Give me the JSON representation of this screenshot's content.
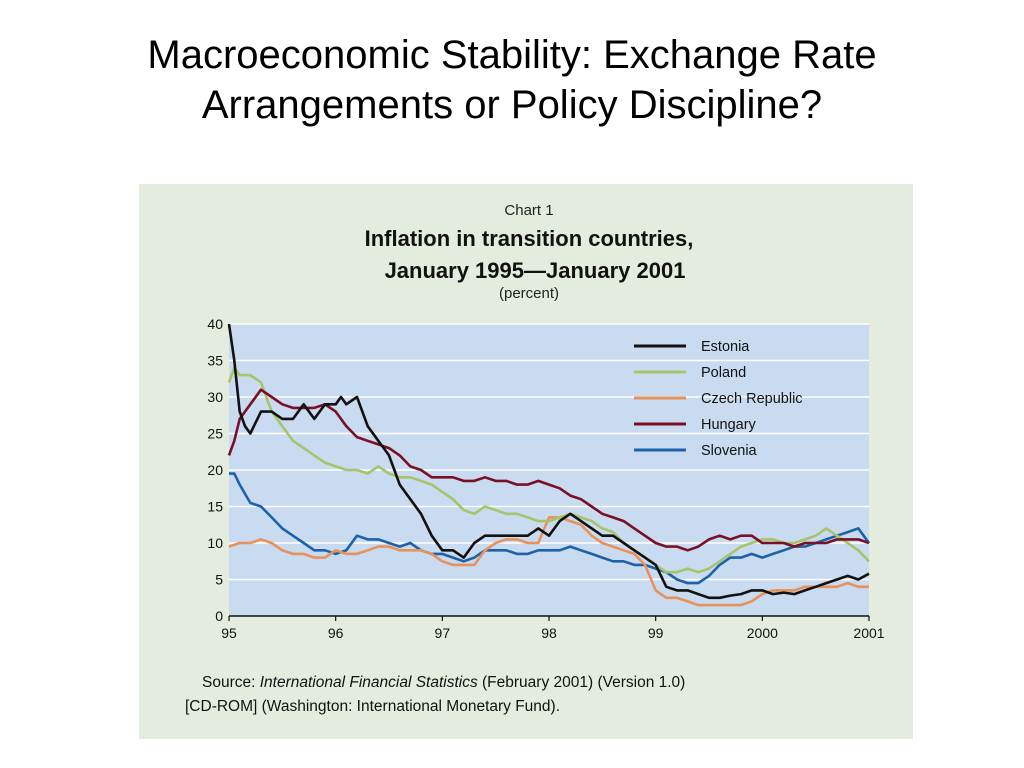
{
  "slide": {
    "title_line1": "Macroeconomic Stability: Exchange Rate",
    "title_line2": "Arrangements or Policy Discipline?"
  },
  "source": {
    "prefix": "Source:",
    "publication": "International Financial Statistics",
    "rest_line1": "(February 2001) (Version 1.0)",
    "line2": "[CD-ROM] (Washington: International Monetary Fund)."
  },
  "colors": {
    "panel_bg": "#e4eddd",
    "plot_bg": "#c9dbf0",
    "grid": "#ffffff",
    "Estonia": "#111111",
    "Poland": "#a7c46a",
    "Czech Republic": "#e8925a",
    "Hungary": "#7a0f25",
    "Slovenia": "#1d62a8"
  },
  "chart_data": {
    "type": "line",
    "chart_label": "Chart 1",
    "title_line1": "Inflation in transition countries,",
    "title_line2": "January 1995—January 2001",
    "subtitle": "(percent)",
    "xlim": [
      1995,
      2001
    ],
    "ylim": [
      0,
      40
    ],
    "xticks": [
      1995,
      1996,
      1997,
      1998,
      1999,
      2000,
      2001
    ],
    "xtick_labels": [
      "95",
      "96",
      "97",
      "98",
      "99",
      "2000",
      "2001"
    ],
    "yticks": [
      0,
      5,
      10,
      15,
      20,
      25,
      30,
      35,
      40
    ],
    "ytick_labels": [
      "0",
      "5",
      "10",
      "15",
      "20",
      "25",
      "30",
      "35",
      "40"
    ],
    "grid": "horizontal",
    "legend_position": "top-right",
    "series": [
      {
        "name": "Estonia",
        "x": [
          1995.0,
          1995.05,
          1995.1,
          1995.15,
          1995.2,
          1995.3,
          1995.4,
          1995.5,
          1995.6,
          1995.7,
          1995.8,
          1995.9,
          1996.0,
          1996.05,
          1996.1,
          1996.2,
          1996.3,
          1996.4,
          1996.5,
          1996.6,
          1996.7,
          1996.8,
          1996.9,
          1997.0,
          1997.1,
          1997.2,
          1997.3,
          1997.4,
          1997.5,
          1997.6,
          1997.7,
          1997.8,
          1997.9,
          1998.0,
          1998.1,
          1998.2,
          1998.3,
          1998.4,
          1998.5,
          1998.6,
          1998.7,
          1998.8,
          1998.9,
          1999.0,
          1999.1,
          1999.2,
          1999.3,
          1999.4,
          1999.5,
          1999.6,
          1999.7,
          1999.8,
          1999.9,
          2000.0,
          2000.1,
          2000.2,
          2000.3,
          2000.4,
          2000.5,
          2000.6,
          2000.7,
          2000.8,
          2000.9,
          2001.0
        ],
        "values": [
          40,
          35,
          28,
          26,
          25,
          28,
          28,
          27,
          27,
          29,
          27,
          29,
          29,
          30,
          29,
          30,
          26,
          24,
          22,
          18,
          16,
          14,
          11,
          9,
          9,
          8,
          10,
          11,
          11,
          11,
          11,
          11,
          12,
          11,
          13,
          14,
          13,
          12,
          11,
          11,
          10,
          9,
          8,
          7,
          4,
          3.5,
          3.5,
          3,
          2.5,
          2.5,
          2.8,
          3,
          3.5,
          3.5,
          3,
          3.2,
          3,
          3.5,
          4,
          4.5,
          5,
          5.5,
          5,
          5.8
        ]
      },
      {
        "name": "Poland",
        "x": [
          1995.0,
          1995.05,
          1995.1,
          1995.2,
          1995.3,
          1995.4,
          1995.5,
          1995.6,
          1995.7,
          1995.8,
          1995.9,
          1996.0,
          1996.1,
          1996.2,
          1996.3,
          1996.4,
          1996.5,
          1996.6,
          1996.7,
          1996.8,
          1996.9,
          1997.0,
          1997.1,
          1997.2,
          1997.3,
          1997.4,
          1997.5,
          1997.6,
          1997.7,
          1997.8,
          1997.9,
          1998.0,
          1998.1,
          1998.2,
          1998.3,
          1998.4,
          1998.5,
          1998.6,
          1998.7,
          1998.8,
          1998.9,
          1999.0,
          1999.1,
          1999.2,
          1999.3,
          1999.4,
          1999.5,
          1999.6,
          1999.7,
          1999.8,
          1999.9,
          2000.0,
          2000.1,
          2000.2,
          2000.3,
          2000.4,
          2000.5,
          2000.6,
          2000.7,
          2000.8,
          2000.9,
          2001.0
        ],
        "values": [
          32,
          34,
          33,
          33,
          32,
          28,
          26,
          24,
          23,
          22,
          21,
          20.5,
          20,
          20,
          19.5,
          20.5,
          19.5,
          19,
          19,
          18.5,
          18,
          17,
          16,
          14.5,
          14,
          15,
          14.5,
          14,
          14,
          13.5,
          13,
          13,
          13.5,
          14,
          13.5,
          13,
          12,
          11.5,
          10,
          9,
          8,
          7,
          6,
          6,
          6.5,
          6,
          6.5,
          7.5,
          8.5,
          9.5,
          10,
          10.5,
          10.5,
          10,
          10,
          10.5,
          11,
          12,
          11,
          10,
          9,
          7.5
        ]
      },
      {
        "name": "Czech Republic",
        "x": [
          1995.0,
          1995.1,
          1995.2,
          1995.3,
          1995.4,
          1995.5,
          1995.6,
          1995.7,
          1995.8,
          1995.9,
          1996.0,
          1996.1,
          1996.2,
          1996.3,
          1996.4,
          1996.5,
          1996.6,
          1996.7,
          1996.8,
          1996.9,
          1997.0,
          1997.1,
          1997.2,
          1997.3,
          1997.4,
          1997.5,
          1997.6,
          1997.7,
          1997.8,
          1997.9,
          1998.0,
          1998.1,
          1998.2,
          1998.3,
          1998.4,
          1998.5,
          1998.6,
          1998.7,
          1998.8,
          1998.9,
          1999.0,
          1999.1,
          1999.2,
          1999.3,
          1999.4,
          1999.5,
          1999.6,
          1999.7,
          1999.8,
          1999.9,
          2000.0,
          2000.1,
          2000.2,
          2000.3,
          2000.4,
          2000.5,
          2000.6,
          2000.7,
          2000.8,
          2000.9,
          2001.0
        ],
        "values": [
          9.5,
          10,
          10,
          10.5,
          10,
          9,
          8.5,
          8.5,
          8,
          8,
          9,
          8.5,
          8.5,
          9,
          9.5,
          9.5,
          9,
          9,
          9,
          8.5,
          7.5,
          7,
          7,
          7,
          9,
          10,
          10.5,
          10.5,
          10,
          10,
          13.5,
          13.5,
          13,
          12.5,
          11,
          10,
          9.5,
          9,
          8.5,
          7,
          3.5,
          2.5,
          2.5,
          2,
          1.5,
          1.5,
          1.5,
          1.5,
          1.5,
          2,
          3,
          3.5,
          3.5,
          3.5,
          4,
          4,
          4,
          4,
          4.5,
          4,
          4
        ]
      },
      {
        "name": "Hungary",
        "x": [
          1995.0,
          1995.05,
          1995.1,
          1995.2,
          1995.3,
          1995.4,
          1995.5,
          1995.6,
          1995.7,
          1995.8,
          1995.9,
          1996.0,
          1996.1,
          1996.2,
          1996.3,
          1996.4,
          1996.5,
          1996.6,
          1996.7,
          1996.8,
          1996.9,
          1997.0,
          1997.1,
          1997.2,
          1997.3,
          1997.4,
          1997.5,
          1997.6,
          1997.7,
          1997.8,
          1997.9,
          1998.0,
          1998.1,
          1998.2,
          1998.3,
          1998.4,
          1998.5,
          1998.6,
          1998.7,
          1998.8,
          1998.9,
          1999.0,
          1999.1,
          1999.2,
          1999.3,
          1999.4,
          1999.5,
          1999.6,
          1999.7,
          1999.8,
          1999.9,
          2000.0,
          2000.1,
          2000.2,
          2000.3,
          2000.4,
          2000.5,
          2000.6,
          2000.7,
          2000.8,
          2000.9,
          2001.0
        ],
        "values": [
          22,
          24,
          27,
          29,
          31,
          30,
          29,
          28.5,
          28.5,
          28.5,
          29,
          28,
          26,
          24.5,
          24,
          23.5,
          23,
          22,
          20.5,
          20,
          19,
          19,
          19,
          18.5,
          18.5,
          19,
          18.5,
          18.5,
          18,
          18,
          18.5,
          18,
          17.5,
          16.5,
          16,
          15,
          14,
          13.5,
          13,
          12,
          11,
          10,
          9.5,
          9.5,
          9,
          9.5,
          10.5,
          11,
          10.5,
          11,
          11,
          10,
          10,
          10,
          9.5,
          10,
          10,
          10,
          10.5,
          10.5,
          10.5,
          10
        ]
      },
      {
        "name": "Slovenia",
        "x": [
          1995.0,
          1995.05,
          1995.1,
          1995.2,
          1995.3,
          1995.4,
          1995.5,
          1995.6,
          1995.7,
          1995.8,
          1995.9,
          1996.0,
          1996.1,
          1996.2,
          1996.3,
          1996.4,
          1996.5,
          1996.6,
          1996.7,
          1996.8,
          1996.9,
          1997.0,
          1997.1,
          1997.2,
          1997.3,
          1997.4,
          1997.5,
          1997.6,
          1997.7,
          1997.8,
          1997.9,
          1998.0,
          1998.1,
          1998.2,
          1998.3,
          1998.4,
          1998.5,
          1998.6,
          1998.7,
          1998.8,
          1998.9,
          1999.0,
          1999.1,
          1999.2,
          1999.3,
          1999.4,
          1999.5,
          1999.6,
          1999.7,
          1999.8,
          1999.9,
          2000.0,
          2000.1,
          2000.2,
          2000.3,
          2000.4,
          2000.5,
          2000.6,
          2000.7,
          2000.8,
          2000.9,
          2001.0
        ],
        "values": [
          19.5,
          19.5,
          18,
          15.5,
          15,
          13.5,
          12,
          11,
          10,
          9,
          9,
          8.5,
          9,
          11,
          10.5,
          10.5,
          10,
          9.5,
          10,
          9,
          8.5,
          8.5,
          8,
          7.5,
          8,
          9,
          9,
          9,
          8.5,
          8.5,
          9,
          9,
          9,
          9.5,
          9,
          8.5,
          8,
          7.5,
          7.5,
          7,
          7,
          6.5,
          6,
          5,
          4.5,
          4.5,
          5.5,
          7,
          8,
          8,
          8.5,
          8,
          8.5,
          9,
          9.5,
          9.5,
          10,
          10.5,
          11,
          11.5,
          12,
          10
        ]
      }
    ]
  }
}
